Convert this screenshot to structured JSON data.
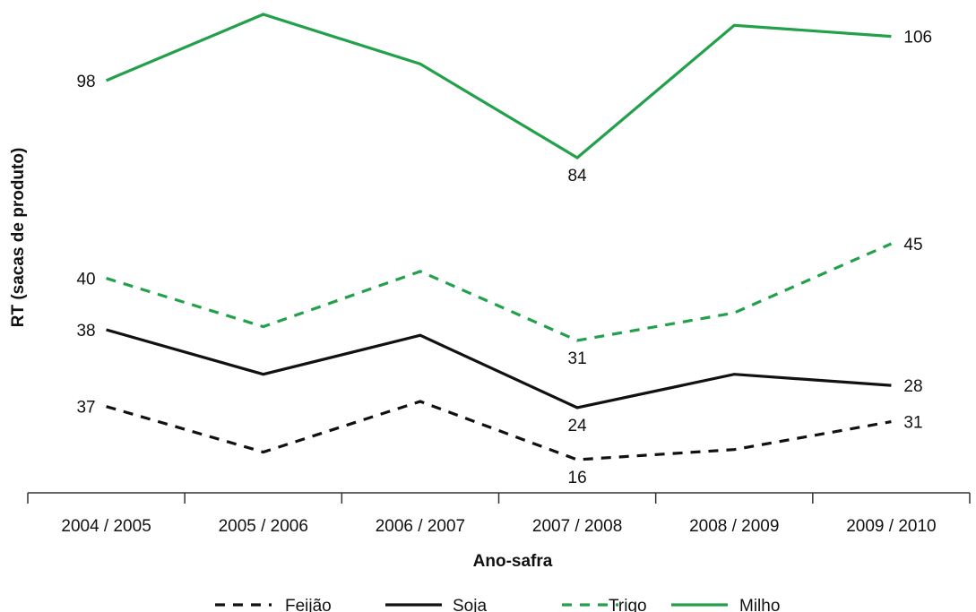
{
  "chart_data": {
    "type": "line",
    "title": "",
    "xlabel": "Ano-safra",
    "ylabel": "RT (sacas de produto)",
    "categories": [
      "2004 / 2005",
      "2005 / 2006",
      "2006 / 2007",
      "2007 / 2008",
      "2008 / 2009",
      "2009 / 2010"
    ],
    "series": [
      {
        "name": "Feijão",
        "color": "#111111",
        "dash": "dashed",
        "values": [
          37,
          19,
          39,
          16,
          20,
          31
        ],
        "labels": {
          "0": "37",
          "3": "16",
          "5": "31"
        }
      },
      {
        "name": "Soja",
        "color": "#111111",
        "dash": "solid",
        "values": [
          38,
          30,
          37,
          24,
          30,
          28
        ],
        "labels": {
          "0": "38",
          "3": "24",
          "5": "28"
        }
      },
      {
        "name": "Trigo",
        "color": "#22a04a",
        "dash": "dashed",
        "values": [
          40,
          33,
          41,
          31,
          35,
          45
        ],
        "labels": {
          "0": "40",
          "3": "31",
          "5": "45"
        }
      },
      {
        "name": "Milho",
        "color": "#22a04a",
        "dash": "solid",
        "values": [
          98,
          110,
          101,
          84,
          108,
          106
        ],
        "labels": {
          "0": "98",
          "3": "84",
          "5": "106"
        }
      }
    ],
    "grid": false,
    "legend_position": "bottom"
  }
}
